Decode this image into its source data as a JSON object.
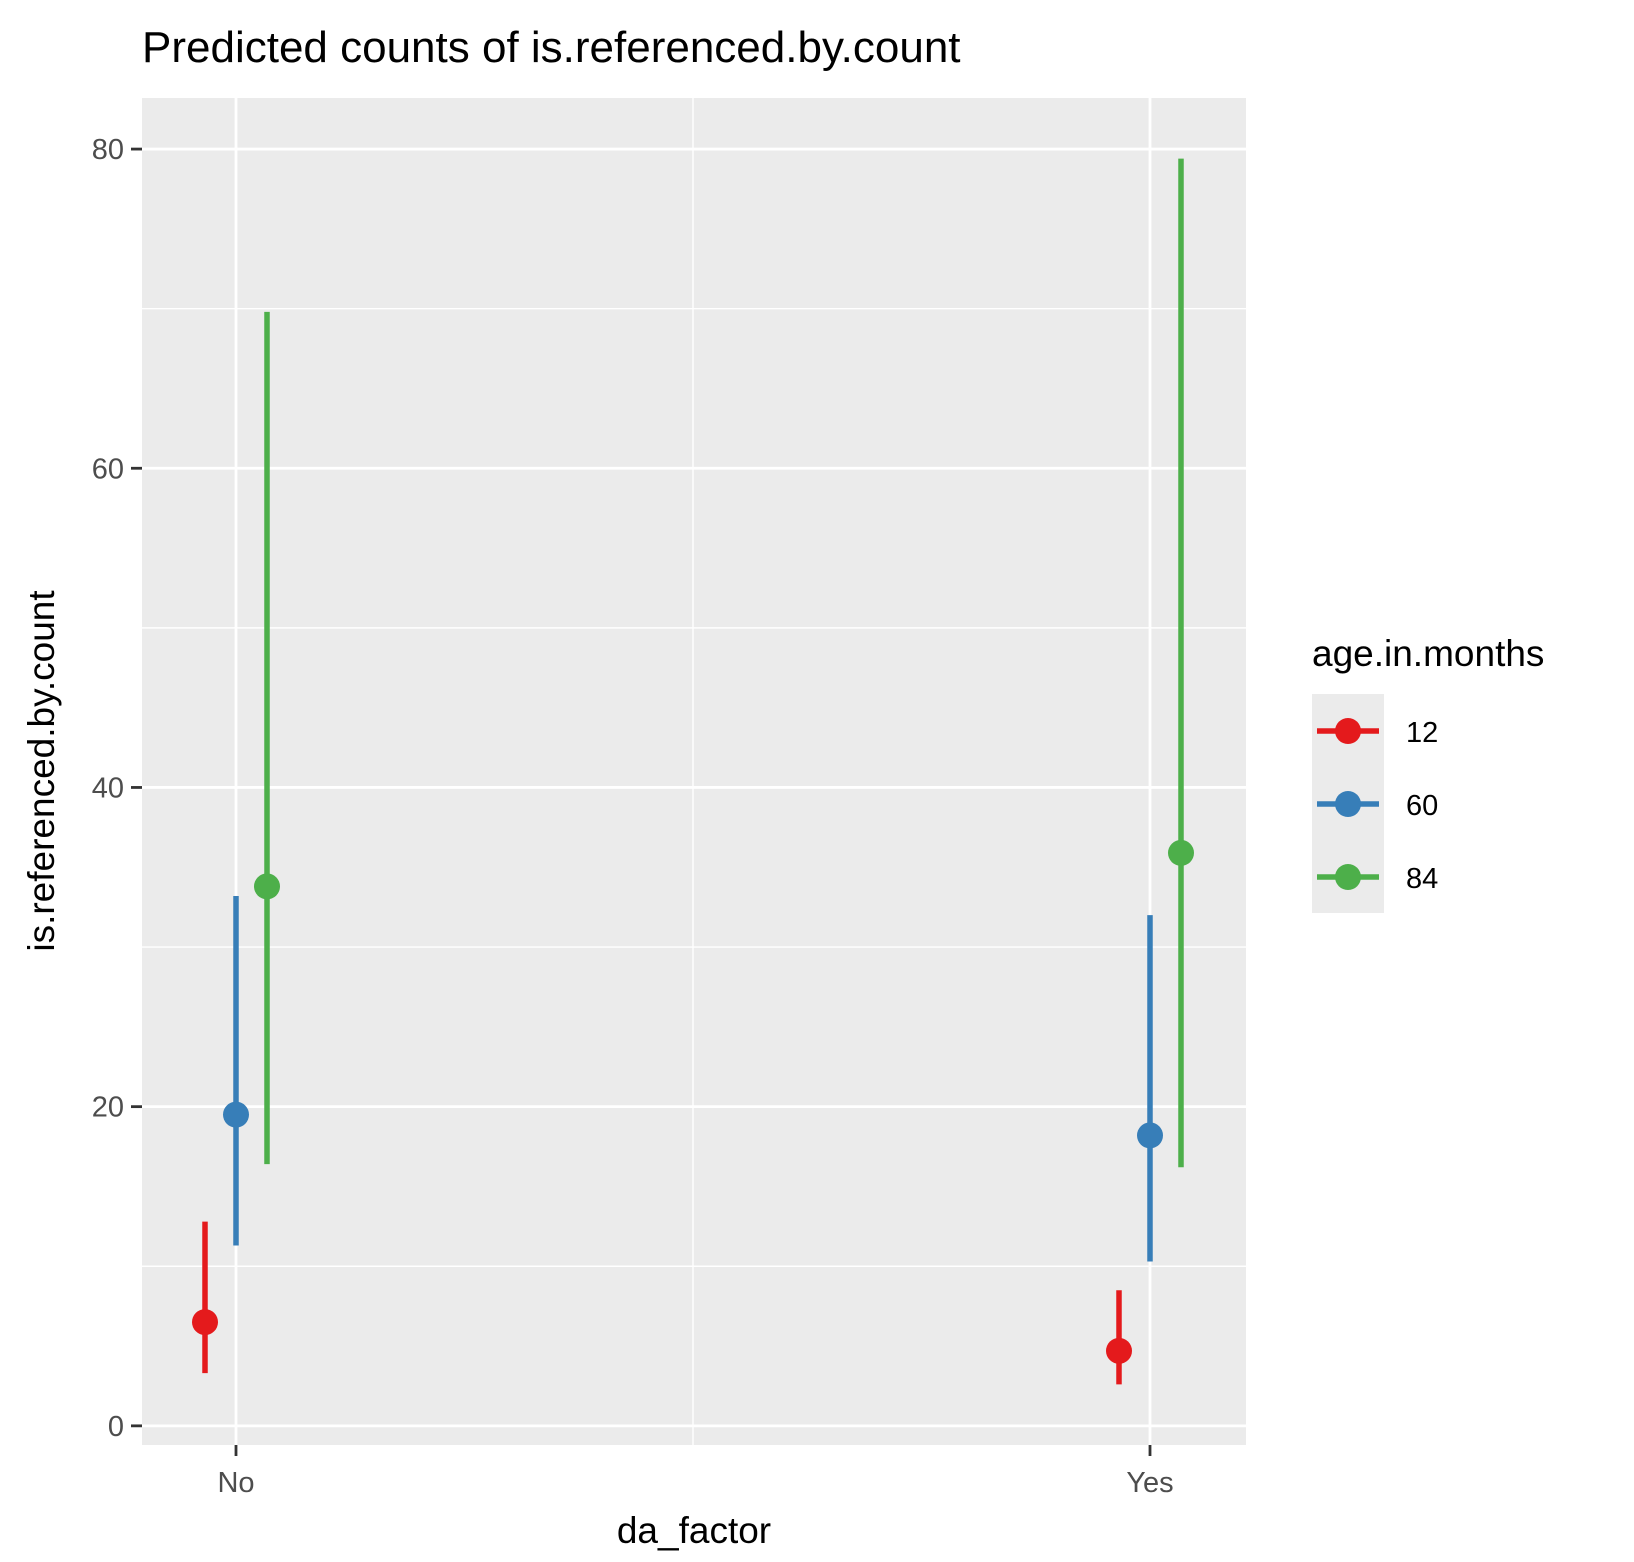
{
  "chart_data": {
    "type": "scatter",
    "title": "Predicted counts of is.referenced.by.count",
    "xlabel": "da_factor",
    "ylabel": "is.referenced.by.count",
    "categories": [
      "No",
      "Yes"
    ],
    "ylim": [
      -1.2,
      83.2
    ],
    "yticks": [
      0,
      20,
      40,
      60,
      80
    ],
    "grid": true,
    "legend": {
      "title": "age.in.months",
      "position": "right"
    },
    "series": [
      {
        "name": "12",
        "color": "#E41A1C",
        "points": [
          {
            "x": "No",
            "y": 6.5,
            "ymin": 3.3,
            "ymax": 12.8
          },
          {
            "x": "Yes",
            "y": 4.7,
            "ymin": 2.6,
            "ymax": 8.5
          }
        ]
      },
      {
        "name": "60",
        "color": "#377EB8",
        "points": [
          {
            "x": "No",
            "y": 19.5,
            "ymin": 11.3,
            "ymax": 33.2
          },
          {
            "x": "Yes",
            "y": 18.2,
            "ymin": 10.3,
            "ymax": 32.0
          }
        ]
      },
      {
        "name": "84",
        "color": "#4DAF4A",
        "points": [
          {
            "x": "No",
            "y": 33.8,
            "ymin": 16.4,
            "ymax": 69.8
          },
          {
            "x": "Yes",
            "y": 35.9,
            "ymin": 16.2,
            "ymax": 79.4
          }
        ]
      }
    ]
  }
}
